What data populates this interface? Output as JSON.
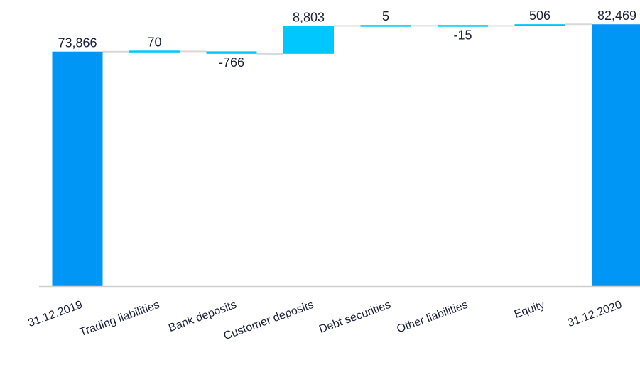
{
  "chart_data": {
    "type": "bar",
    "subtype": "waterfall",
    "categories": [
      "31.12.2019",
      "Trading liabilities",
      "Bank deposits",
      "Customer deposits",
      "Debt securities",
      "Other liabilities",
      "Equity",
      "31.12.2020"
    ],
    "values": [
      73866,
      70,
      -766,
      8803,
      5,
      -15,
      506,
      82469
    ],
    "value_labels": [
      "73,866",
      "70",
      "-766",
      "8,803",
      "5",
      "-15",
      "506",
      "82,469"
    ],
    "kinds": [
      "total",
      "delta",
      "delta",
      "delta",
      "delta",
      "delta",
      "delta",
      "total"
    ],
    "title": "",
    "xlabel": "",
    "ylabel": "",
    "grid": false,
    "legend": "none",
    "colors": {
      "total": "#0096f5",
      "increase": "#00c8ff",
      "decrease": "#00c8ff",
      "connector": "#d8d8d8",
      "axis": "#cfcfcf",
      "text": "#1a1f3a"
    }
  }
}
